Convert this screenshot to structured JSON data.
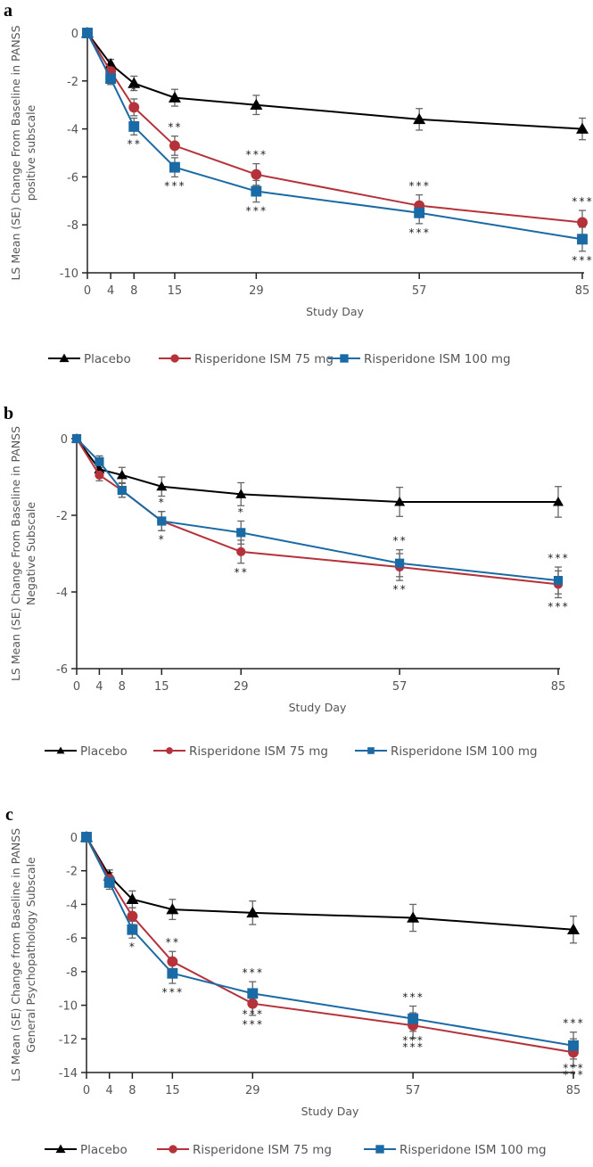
{
  "chart_data": [
    {
      "panel": "a",
      "type": "line",
      "title": "",
      "xlabel": "Study Day",
      "ylabel": [
        "LS Mean (SE) Change From Baseline in PANSS",
        "positive subscale"
      ],
      "x": [
        0,
        4,
        8,
        15,
        29,
        57,
        85
      ],
      "x_ticks": [
        0,
        4,
        8,
        15,
        29,
        57,
        85
      ],
      "xlim": [
        0,
        85
      ],
      "ylim": [
        -10,
        0
      ],
      "y_ticks": [
        0,
        -2,
        -4,
        -6,
        -8,
        -10
      ],
      "grid": false,
      "legend_position": "bottom",
      "series": [
        {
          "name": "Placebo",
          "color": "#000000",
          "marker": "triangle",
          "values": [
            0,
            -1.3,
            -2.1,
            -2.7,
            -3.0,
            -3.6,
            -4.0
          ],
          "se": [
            0,
            0.2,
            0.3,
            0.35,
            0.4,
            0.45,
            0.45
          ]
        },
        {
          "name": "Risperidone ISM 75 mg",
          "color": "#b5323a",
          "marker": "circle",
          "values": [
            0,
            -1.6,
            -3.1,
            -4.7,
            -5.9,
            -7.2,
            -7.9
          ],
          "se": [
            0,
            0.2,
            0.35,
            0.4,
            0.45,
            0.45,
            0.5
          ],
          "significance": [
            null,
            null,
            "*",
            "**",
            "***",
            "***",
            "***"
          ],
          "sig_side": "above"
        },
        {
          "name": "Risperidone ISM 100 mg",
          "color": "#1a6aa5",
          "marker": "square",
          "values": [
            0,
            -1.9,
            -3.9,
            -5.6,
            -6.6,
            -7.5,
            -8.6
          ],
          "se": [
            0,
            0.25,
            0.35,
            0.4,
            0.45,
            0.45,
            0.5
          ],
          "significance": [
            null,
            null,
            "**",
            "***",
            "***",
            "***",
            "***"
          ],
          "sig_side": "below"
        }
      ]
    },
    {
      "panel": "b",
      "type": "line",
      "title": "",
      "xlabel": "Study Day",
      "ylabel": [
        "LS Mean (SE) Change From Baseline in PANSS",
        "Negative Subscale"
      ],
      "x": [
        0,
        4,
        8,
        15,
        29,
        57,
        85
      ],
      "x_ticks": [
        0,
        4,
        8,
        15,
        29,
        57,
        85
      ],
      "xlim": [
        0,
        85
      ],
      "ylim": [
        -6,
        0
      ],
      "y_ticks": [
        0,
        -2,
        -4,
        -6
      ],
      "grid": false,
      "legend_position": "bottom",
      "series": [
        {
          "name": "Placebo",
          "color": "#000000",
          "marker": "triangle",
          "values": [
            0,
            -0.8,
            -0.95,
            -1.25,
            -1.45,
            -1.65,
            -1.65
          ],
          "se": [
            0,
            0.15,
            0.2,
            0.25,
            0.3,
            0.38,
            0.4
          ]
        },
        {
          "name": "Risperidone ISM 75 mg",
          "color": "#b5323a",
          "marker": "circle",
          "values": [
            0,
            -0.95,
            -1.35,
            -2.15,
            -2.95,
            -3.35,
            -3.8
          ],
          "se": [
            0,
            0.15,
            0.18,
            0.25,
            0.3,
            0.35,
            0.35
          ],
          "significance": [
            null,
            null,
            null,
            "*",
            "**",
            "**",
            "***"
          ],
          "sig_side": "below"
        },
        {
          "name": "Risperidone ISM 100 mg",
          "color": "#1a6aa5",
          "marker": "square",
          "values": [
            0,
            -0.6,
            -1.35,
            -2.15,
            -2.45,
            -3.25,
            -3.7
          ],
          "se": [
            0,
            0.15,
            0.18,
            0.25,
            0.3,
            0.35,
            0.35
          ],
          "significance": [
            null,
            null,
            null,
            "*",
            "*",
            "**",
            "***"
          ],
          "sig_side": "above"
        }
      ]
    },
    {
      "panel": "c",
      "type": "line",
      "title": "",
      "xlabel": "Study Day",
      "ylabel": [
        "LS Mean (SE) Change from Baseline in PANSS",
        "General Psychopathology Subscale"
      ],
      "x": [
        0,
        4,
        8,
        15,
        29,
        57,
        85
      ],
      "x_ticks": [
        0,
        4,
        8,
        15,
        29,
        57,
        85
      ],
      "xlim": [
        0,
        85
      ],
      "ylim": [
        -14,
        0
      ],
      "y_ticks": [
        0,
        -2,
        -4,
        -6,
        -8,
        -10,
        -12,
        -14
      ],
      "grid": false,
      "legend_position": "bottom",
      "series": [
        {
          "name": "Placebo",
          "color": "#000000",
          "marker": "triangle",
          "values": [
            0,
            -2.3,
            -3.7,
            -4.3,
            -4.5,
            -4.8,
            -5.5
          ],
          "se": [
            0,
            0.35,
            0.5,
            0.6,
            0.7,
            0.8,
            0.8
          ]
        },
        {
          "name": "Risperidone ISM 75 mg",
          "color": "#b5323a",
          "marker": "circle",
          "values": [
            0,
            -2.5,
            -4.7,
            -7.4,
            -9.9,
            -11.2,
            -12.8
          ],
          "se": [
            0,
            0.4,
            0.5,
            0.6,
            0.7,
            0.75,
            0.8
          ]
        },
        {
          "name": "Risperidone ISM 100 mg",
          "color": "#1a6aa5",
          "marker": "square",
          "values": [
            0,
            -2.7,
            -5.5,
            -8.1,
            -9.3,
            -10.8,
            -12.4
          ],
          "se": [
            0,
            0.4,
            0.5,
            0.6,
            0.7,
            0.75,
            0.8
          ],
          "significance": [
            null,
            null,
            "*",
            "***",
            "***",
            "***",
            "***"
          ],
          "sig_side": "below"
        }
      ],
      "extra_significance": [
        {
          "x": 15,
          "label": "**",
          "side": "above",
          "series": 1
        },
        {
          "x": 29,
          "label": "***",
          "side": "above",
          "series": 2
        },
        {
          "x": 29,
          "label": "***",
          "side": "below",
          "series": 1
        },
        {
          "x": 57,
          "label": "***",
          "side": "above",
          "series": 2
        },
        {
          "x": 57,
          "label": "***",
          "side": "below",
          "series": 1
        },
        {
          "x": 85,
          "label": "***",
          "side": "above",
          "series": 2
        },
        {
          "x": 85,
          "label": "***",
          "side": "below",
          "series": 1
        }
      ]
    }
  ],
  "legend": {
    "items": [
      {
        "label": "Placebo",
        "color": "#000000",
        "marker": "triangle"
      },
      {
        "label": "Risperidone ISM 75 mg",
        "color": "#b5323a",
        "marker": "circle"
      },
      {
        "label": "Risperidone ISM 100 mg",
        "color": "#1a6aa5",
        "marker": "square"
      }
    ]
  }
}
